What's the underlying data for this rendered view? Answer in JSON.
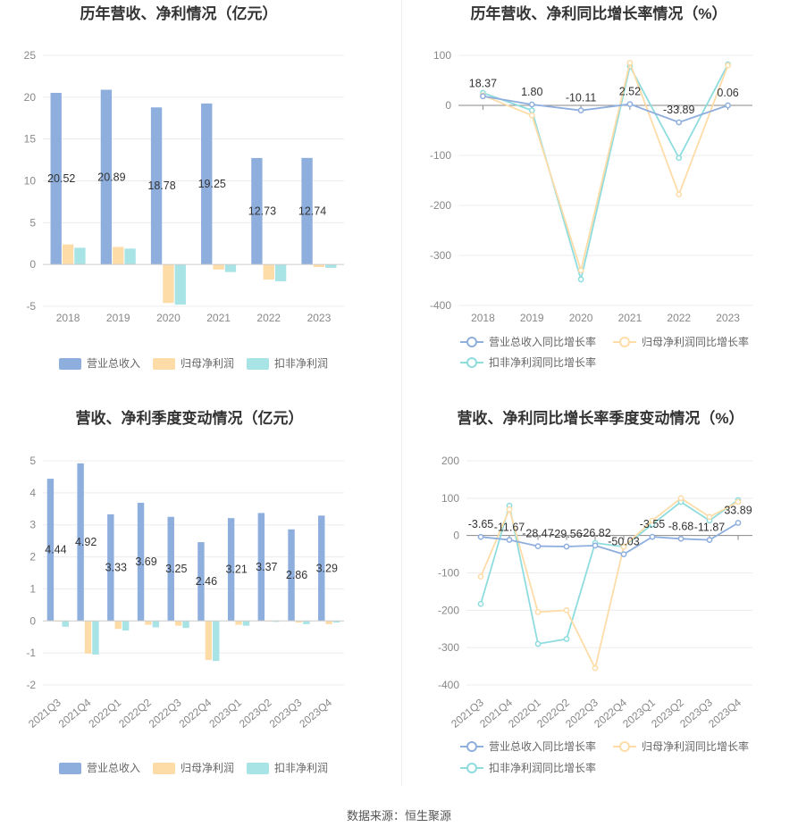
{
  "source": "数据来源：恒生聚源",
  "legend": {
    "bar_items": [
      "营业总收入",
      "归母净利润",
      "扣非净利润"
    ],
    "line_items": [
      "营业总收入同比增长率",
      "归母净利润同比增长率",
      "扣非净利润同比增长率"
    ]
  },
  "colors": {
    "revenue": "#8eaede",
    "net_profit": "#fddca8",
    "deducted_profit": "#a8e3e6",
    "revenue_line": "#8eaede",
    "net_profit_line": "#fddca8",
    "deducted_line": "#8fdcdf"
  },
  "chart_data": [
    {
      "id": "annual_amounts",
      "type": "bar",
      "title": "历年营收、净利情况（亿元）",
      "categories": [
        "2018",
        "2019",
        "2020",
        "2021",
        "2022",
        "2023"
      ],
      "ylim": [
        -5,
        25
      ],
      "yticks": [
        -5,
        0,
        5,
        10,
        15,
        20,
        25
      ],
      "grid": true,
      "legend_position": "bottom",
      "series": [
        {
          "name": "营业总收入",
          "values": [
            20.52,
            20.89,
            18.78,
            19.25,
            12.73,
            12.74
          ],
          "labels": [
            "20.52",
            "20.89",
            "18.78",
            "19.25",
            "12.73",
            "12.74"
          ]
        },
        {
          "name": "归母净利润",
          "values": [
            2.4,
            2.1,
            -4.6,
            -0.6,
            -1.8,
            -0.3
          ]
        },
        {
          "name": "扣非净利润",
          "values": [
            2.0,
            1.9,
            -4.8,
            -0.9,
            -2.0,
            -0.4
          ]
        }
      ]
    },
    {
      "id": "annual_growth",
      "type": "line",
      "title": "历年营收、净利同比增长率情况（%）",
      "categories": [
        "2018",
        "2019",
        "2020",
        "2021",
        "2022",
        "2023"
      ],
      "ylim": [
        -400,
        100
      ],
      "yticks": [
        -400,
        -300,
        -200,
        -100,
        0,
        100
      ],
      "grid": true,
      "legend_position": "bottom",
      "series": [
        {
          "name": "营业总收入同比增长率",
          "values": [
            18.37,
            1.8,
            -10.11,
            2.52,
            -33.89,
            0.06
          ],
          "labels": [
            "18.37",
            "1.80",
            "-10.11",
            "2.52",
            "-33.89",
            "0.06"
          ]
        },
        {
          "name": "归母净利润同比增长率",
          "values": [
            20,
            -20,
            -330,
            85,
            -178,
            80
          ]
        },
        {
          "name": "扣非净利润同比增长率",
          "values": [
            25,
            -10,
            -348,
            78,
            -105,
            82
          ]
        }
      ]
    },
    {
      "id": "quarterly_amounts",
      "type": "bar",
      "title": "营收、净利季度变动情况（亿元）",
      "categories": [
        "2021Q3",
        "2021Q4",
        "2022Q1",
        "2022Q2",
        "2022Q3",
        "2022Q4",
        "2023Q1",
        "2023Q2",
        "2023Q3",
        "2023Q4"
      ],
      "ylim": [
        -2,
        5
      ],
      "yticks": [
        -2,
        -1,
        0,
        1,
        2,
        3,
        4,
        5
      ],
      "grid": true,
      "legend_position": "bottom",
      "series": [
        {
          "name": "营业总收入",
          "values": [
            4.44,
            4.92,
            3.33,
            3.69,
            3.25,
            2.46,
            3.21,
            3.37,
            2.86,
            3.29
          ],
          "labels": [
            "4.44",
            "4.92",
            "3.33",
            "3.69",
            "3.25",
            "2.46",
            "3.21",
            "3.37",
            "2.86",
            "3.29"
          ]
        },
        {
          "name": "归母净利润",
          "values": [
            -0.02,
            -1.02,
            -0.25,
            -0.12,
            -0.15,
            -1.22,
            -0.12,
            -0.02,
            -0.05,
            -0.1
          ]
        },
        {
          "name": "扣非净利润",
          "values": [
            -0.18,
            -1.05,
            -0.3,
            -0.2,
            -0.22,
            -1.25,
            -0.15,
            -0.03,
            -0.1,
            -0.05
          ]
        }
      ]
    },
    {
      "id": "quarterly_growth",
      "type": "line",
      "title": "营收、净利同比增长率季度变动情况（%）",
      "categories": [
        "2021Q3",
        "2021Q4",
        "2022Q1",
        "2022Q2",
        "2022Q3",
        "2022Q4",
        "2023Q1",
        "2023Q2",
        "2023Q3",
        "2023Q4"
      ],
      "ylim": [
        -400,
        200
      ],
      "yticks": [
        -400,
        -300,
        -200,
        -100,
        0,
        100,
        200
      ],
      "grid": true,
      "legend_position": "bottom",
      "series": [
        {
          "name": "营业总收入同比增长率",
          "values": [
            -3.65,
            -11.67,
            -28.47,
            -29.56,
            -26.82,
            -50.03,
            -3.55,
            -8.68,
            -11.87,
            33.89
          ],
          "labels": [
            "-3.65",
            "-11.67",
            "-28.47",
            "-29.56",
            "-26.82",
            "-50.03",
            "-3.55",
            "-8.68",
            "-11.87",
            "33.89"
          ]
        },
        {
          "name": "归母净利润同比增长率",
          "values": [
            -110,
            70,
            -205,
            -200,
            -355,
            -30,
            40,
            100,
            50,
            90
          ]
        },
        {
          "name": "扣非净利润同比增长率",
          "values": [
            -183,
            80,
            -290,
            -277,
            -20,
            -30,
            30,
            90,
            40,
            95
          ]
        }
      ]
    }
  ]
}
